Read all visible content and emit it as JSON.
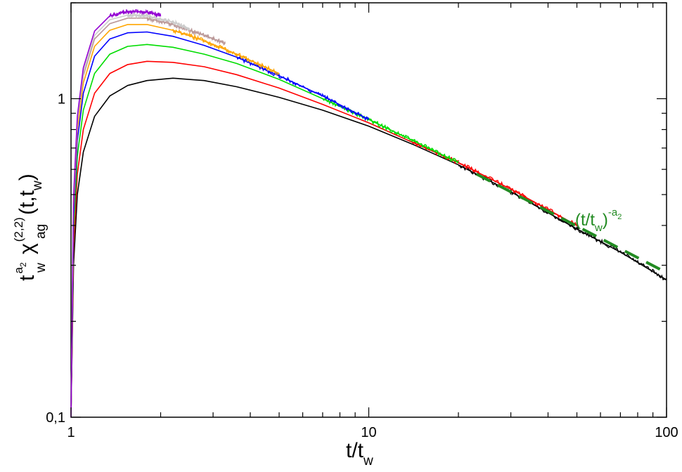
{
  "chart_data": {
    "type": "line",
    "title": "",
    "x_scale": "log",
    "y_scale": "log",
    "xlim": [
      1,
      100
    ],
    "ylim": [
      0.1,
      2
    ],
    "x_ticks": [
      {
        "value": 1,
        "label": "1"
      },
      {
        "value": 10,
        "label": "10"
      },
      {
        "value": 100,
        "label": "100"
      }
    ],
    "y_ticks": [
      {
        "value": 0.1,
        "label": "0,1"
      },
      {
        "value": 1,
        "label": "1"
      }
    ],
    "xlabel": {
      "main": "t/t",
      "sub": "w"
    },
    "ylabel": {
      "t": "t",
      "t_sup": "a",
      "t_sup_sub": "2",
      "t_sub": "w",
      "chi": "χ",
      "chi_sup": "(2,2)",
      "chi_sub": "ag",
      "args": "(t,t",
      "args_sub": "w",
      "args_close": ")"
    },
    "grid": false,
    "legend": "none",
    "series": [
      {
        "color": "#000000",
        "x": [
          1,
          1.02,
          1.05,
          1.1,
          1.2,
          1.35,
          1.55,
          1.8,
          2.2,
          2.8,
          3.6,
          5,
          7,
          10,
          14,
          20,
          30,
          50,
          70,
          100
        ],
        "y": [
          0.1,
          0.3,
          0.5,
          0.68,
          0.88,
          1.02,
          1.1,
          1.14,
          1.16,
          1.14,
          1.09,
          1.01,
          0.92,
          0.82,
          0.72,
          0.62,
          0.51,
          0.39,
          0.33,
          0.27
        ]
      },
      {
        "color": "#ff0000",
        "x": [
          1,
          1.02,
          1.05,
          1.1,
          1.2,
          1.35,
          1.55,
          1.8,
          2.2,
          2.8,
          3.6,
          5,
          7,
          10,
          14,
          20,
          30,
          50
        ],
        "y": [
          0.1,
          0.34,
          0.58,
          0.8,
          1.04,
          1.2,
          1.28,
          1.31,
          1.3,
          1.26,
          1.19,
          1.08,
          0.96,
          0.84,
          0.73,
          0.63,
          0.52,
          0.4
        ]
      },
      {
        "color": "#00dd00",
        "x": [
          1,
          1.02,
          1.05,
          1.1,
          1.2,
          1.35,
          1.55,
          1.8,
          2.2,
          2.8,
          3.6,
          5,
          7,
          10,
          14,
          20
        ],
        "y": [
          0.1,
          0.38,
          0.66,
          0.92,
          1.2,
          1.38,
          1.46,
          1.48,
          1.45,
          1.38,
          1.29,
          1.15,
          1.0,
          0.86,
          0.74,
          0.63
        ]
      },
      {
        "color": "#0000ff",
        "x": [
          1,
          1.02,
          1.05,
          1.1,
          1.2,
          1.35,
          1.55,
          1.8,
          2.2,
          2.8,
          3.6,
          5,
          7,
          10
        ],
        "y": [
          0.1,
          0.42,
          0.74,
          1.04,
          1.36,
          1.54,
          1.61,
          1.62,
          1.57,
          1.47,
          1.35,
          1.18,
          1.02,
          0.86
        ]
      },
      {
        "color": "#ffa500",
        "x": [
          1,
          1.02,
          1.05,
          1.1,
          1.2,
          1.35,
          1.55,
          1.8,
          2.2,
          2.8,
          3.6,
          5
        ],
        "y": [
          0.1,
          0.45,
          0.8,
          1.12,
          1.46,
          1.64,
          1.71,
          1.71,
          1.64,
          1.52,
          1.38,
          1.2
        ]
      },
      {
        "color": "#bb9999",
        "x": [
          1,
          1.02,
          1.05,
          1.1,
          1.2,
          1.35,
          1.55,
          1.8,
          2.2,
          2.8,
          3.3
        ],
        "y": [
          0.1,
          0.47,
          0.84,
          1.18,
          1.54,
          1.72,
          1.79,
          1.79,
          1.71,
          1.58,
          1.49
        ]
      },
      {
        "color": "#cccccc",
        "x": [
          1,
          1.02,
          1.05,
          1.1,
          1.2,
          1.35,
          1.55,
          1.8,
          2.2,
          2.5
        ],
        "y": [
          0.1,
          0.48,
          0.86,
          1.21,
          1.58,
          1.77,
          1.83,
          1.82,
          1.74,
          1.66
        ]
      },
      {
        "color": "#9400d3",
        "x": [
          1,
          1.02,
          1.05,
          1.1,
          1.2,
          1.35,
          1.55,
          1.8,
          2.0
        ],
        "y": [
          0.1,
          0.49,
          0.88,
          1.25,
          1.63,
          1.82,
          1.88,
          1.87,
          1.83
        ]
      }
    ],
    "reference_line": {
      "color": "#228b22",
      "style": "dashed",
      "x": [
        23,
        96
      ],
      "y": [
        0.58,
        0.29
      ]
    },
    "annotation": {
      "color": "#228b22",
      "base": "(t/t",
      "base_sub": "w",
      "close": ")",
      "exp": "-a",
      "exp_sub": "2"
    }
  }
}
